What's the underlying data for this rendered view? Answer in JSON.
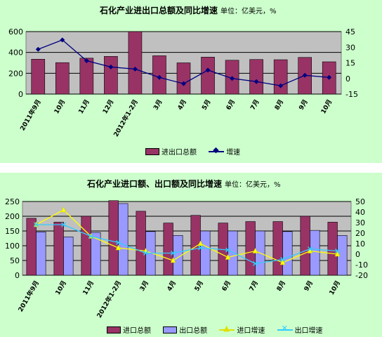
{
  "chart_data": [
    {
      "type": "bar+line",
      "title": "石化产业进出口总额及同比增速",
      "unit_label": "单位：亿美元，%",
      "categories": [
        "2011年9月",
        "10月",
        "11月",
        "12月",
        "2012年1-2月",
        "3月",
        "4月",
        "5月",
        "6月",
        "7月",
        "8月",
        "9月",
        "10月"
      ],
      "series": [
        {
          "name": "进出口总额",
          "kind": "bar",
          "axis": "left",
          "color": "#993366",
          "values": [
            335,
            302,
            345,
            362,
            600,
            368,
            300,
            355,
            325,
            332,
            330,
            352,
            310
          ]
        },
        {
          "name": "增速",
          "kind": "line",
          "axis": "right",
          "color": "#000080",
          "marker": "diamond",
          "values": [
            28,
            37,
            17,
            11,
            9,
            1,
            -5,
            8,
            0,
            -3,
            -7,
            3,
            1
          ]
        }
      ],
      "ylim_left": [
        0,
        600
      ],
      "yticks_left": [
        "0",
        "200",
        "400",
        "600"
      ],
      "ylim_right": [
        -15,
        45
      ],
      "yticks_right": [
        "-15",
        "0",
        "15",
        "30",
        "45"
      ],
      "plot_background": "#c0c0c0",
      "grid": true,
      "legend_position": "bottom"
    },
    {
      "type": "bar+line",
      "title": "石化产业进口额、出口额及同比增速",
      "unit_label": "单位：亿美元，%",
      "categories": [
        "2011年9月",
        "10月",
        "11月",
        "2012年1-2月",
        "3月",
        "4月",
        "5月",
        "6月",
        "7月",
        "8月",
        "9月",
        "10月"
      ],
      "series": [
        {
          "name": "进口总额",
          "kind": "bar",
          "axis": "left",
          "color": "#993366",
          "values": [
            193,
            180,
            200,
            253,
            217,
            177,
            203,
            177,
            182,
            182,
            200,
            180
          ]
        },
        {
          "name": "出口总额",
          "kind": "bar",
          "axis": "left",
          "color": "#9999ff",
          "values": [
            147,
            130,
            145,
            243,
            148,
            135,
            150,
            150,
            150,
            148,
            152,
            135
          ]
        },
        {
          "name": "进口增速",
          "kind": "line",
          "axis": "right",
          "color": "#ffff00",
          "marker": "triangle",
          "values": [
            28,
            42,
            17,
            6,
            3,
            -6,
            10,
            -3,
            3,
            -8,
            3,
            0
          ]
        },
        {
          "name": "出口增速",
          "kind": "line",
          "axis": "right",
          "color": "#33ccff",
          "marker": "x",
          "values": [
            28,
            28,
            17,
            11,
            1,
            1,
            6,
            4,
            -9,
            -5,
            5,
            3
          ]
        }
      ],
      "ylim_left": [
        0,
        250
      ],
      "yticks_left": [
        "0",
        "50",
        "100",
        "150",
        "200",
        "250"
      ],
      "ylim_right": [
        -20,
        50
      ],
      "yticks_right": [
        "-20",
        "-10",
        "0",
        "10",
        "20",
        "30",
        "40",
        "50"
      ],
      "plot_background": "#c0c0c0",
      "grid": true,
      "legend_position": "bottom"
    }
  ]
}
